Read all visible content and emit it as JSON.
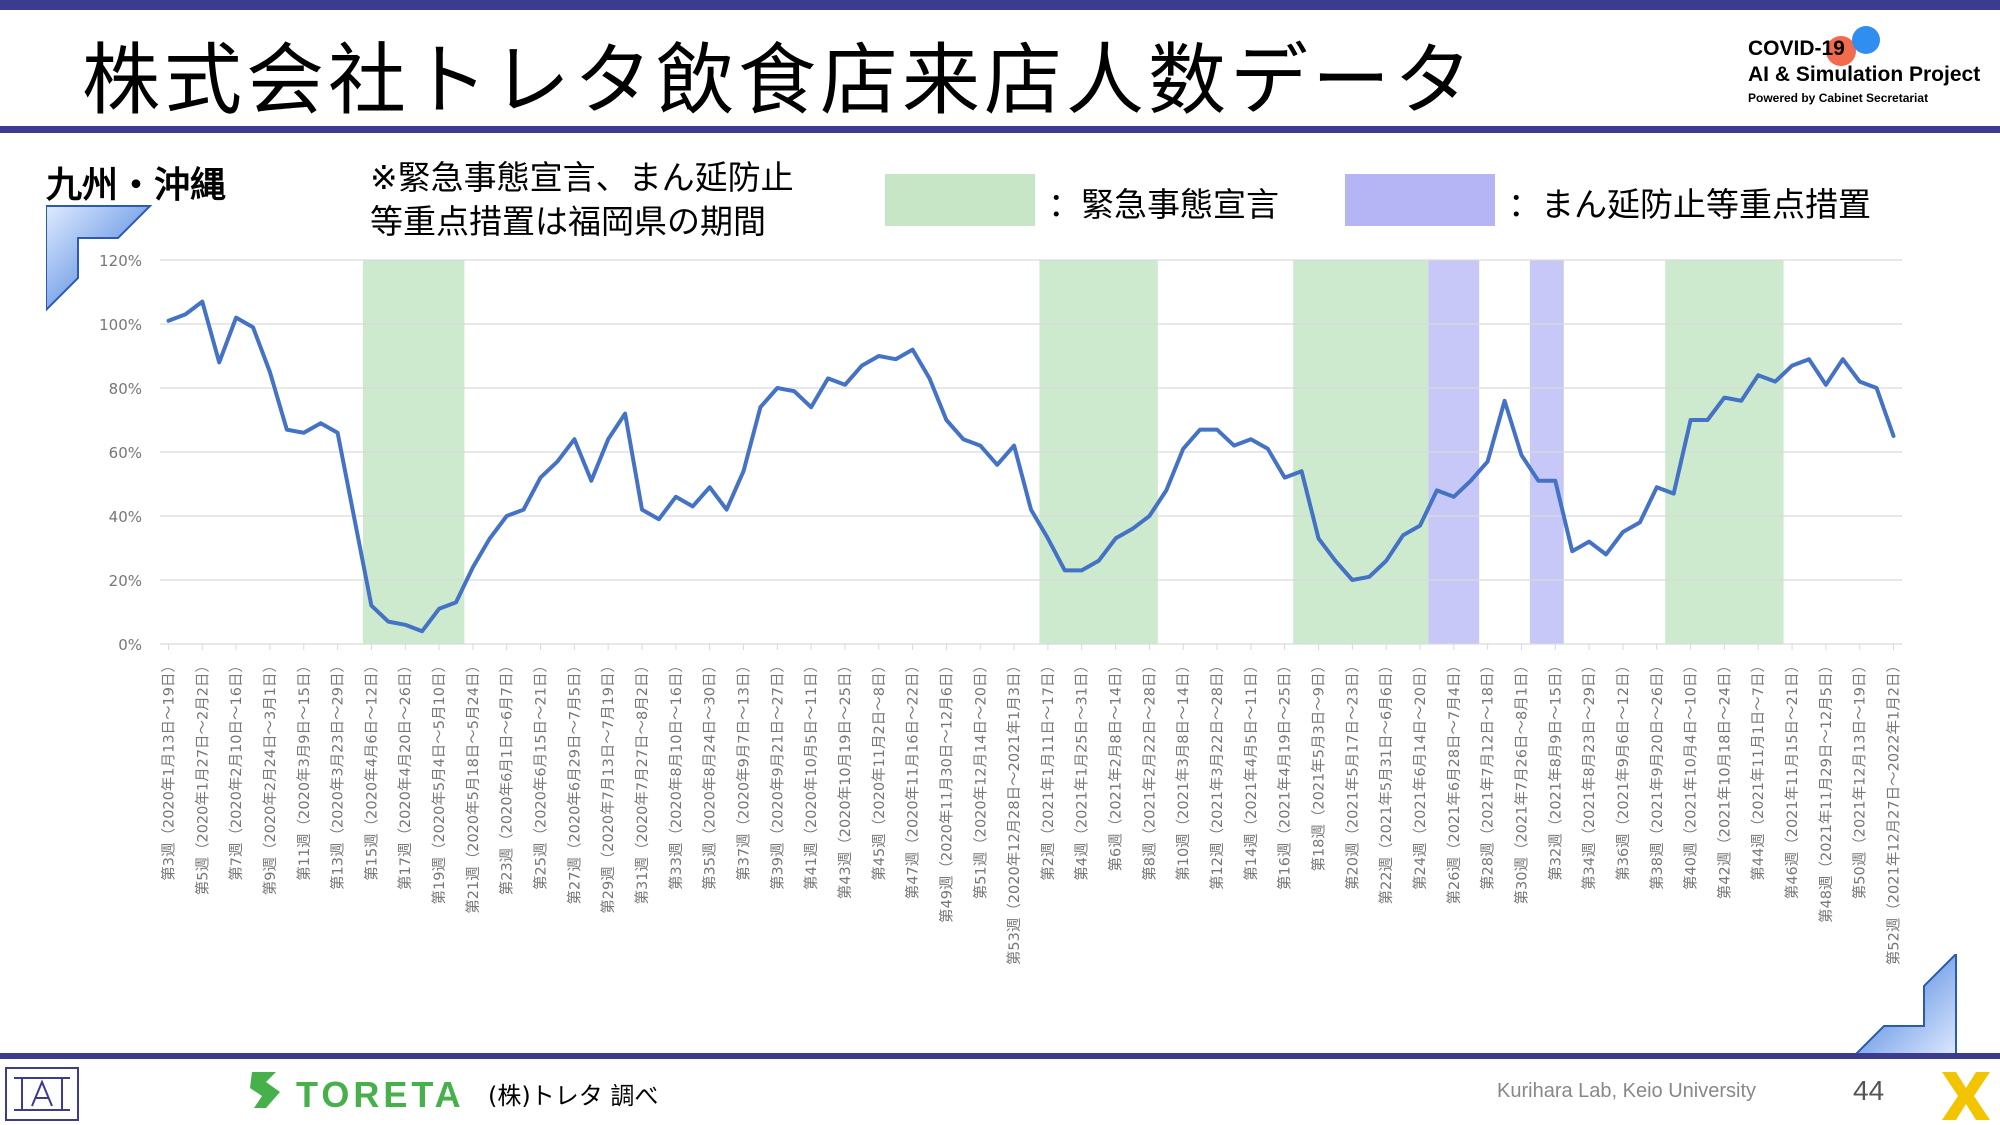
{
  "header": {
    "title": "株式会社トレタ飲食店来店人数データ",
    "logo_line1": "COVID-19",
    "logo_line2": "AI & Simulation Project",
    "logo_line3": "Powered by Cabinet Secretariat"
  },
  "region": "九州・沖縄",
  "note_line1": "※緊急事態宣言、まん延防止",
  "note_line2": "等重点措置は福岡県の期間",
  "legend": [
    {
      "label": "：緊急事態宣言",
      "color": "#c6e6c5"
    },
    {
      "label": "：まん延防止等重点措置",
      "color": "#b5b5f5"
    }
  ],
  "footer": {
    "brand": "TORETA",
    "source": "(株)トレタ 調べ",
    "lab": "Kurihara Lab, Keio University",
    "page": "44"
  },
  "colors": {
    "line": "#4472c4",
    "header_bar": "#3b3b8f",
    "brand_green": "#46b04a"
  },
  "chart_data": {
    "type": "line",
    "ylim": [
      0,
      1.2
    ],
    "yticks": [
      "0%",
      "20%",
      "40%",
      "60%",
      "80%",
      "100%",
      "120%"
    ],
    "grid": true,
    "x_labels": [
      "第3週（2020年1月13日～19日）",
      "第5週（2020年1月27日～2月2日）",
      "第7週（2020年2月10日～16日）",
      "第9週（2020年2月24日～3月1日）",
      "第11週（2020年3月9日～15日）",
      "第13週（2020年3月23日～29日）",
      "第15週（2020年4月6日～12日）",
      "第17週（2020年4月20日～26日）",
      "第19週（2020年5月4日～5月10日）",
      "第21週（2020年5月18日～5月24日）",
      "第23週（2020年6月1日～6月7日）",
      "第25週（2020年6月15日～21日）",
      "第27週（2020年6月29日～7月5日）",
      "第29週（2020年7月13日～7月19日）",
      "第31週（2020年7月27日～8月2日）",
      "第33週（2020年8月10日～16日）",
      "第35週（2020年8月24日～30日）",
      "第37週（2020年9月7日～13日）",
      "第39週（2020年9月21日～27日）",
      "第41週（2020年10月5日～11日）",
      "第43週（2020年10月19日～25日）",
      "第45週（2020年11月2日～8日）",
      "第47週（2020年11月16日～22日）",
      "第49週（2020年11月30日～12月6日）",
      "第51週（2020年12月14日～20日）",
      "第53週（2020年12月28日～2021年1月3日）",
      "第2週（2021年1月11日～17日）",
      "第4週（2021年1月25日～31日）",
      "第6週（2021年2月8日～14日）",
      "第8週（2021年2月22日～28日）",
      "第10週（2021年3月8日～14日）",
      "第12週（2021年3月22日～28日）",
      "第14週（2021年4月5日～11日）",
      "第16週（2021年4月19日～25日）",
      "第18週（2021年5月3日～9日）",
      "第20週（2021年5月17日～23日）",
      "第22週（2021年5月31日～6月6日）",
      "第24週（2021年6月14日～20日）",
      "第26週（2021年6月28日～7月4日）",
      "第28週（2021年7月12日～18日）",
      "第30週（2021年7月26日～8月1日）",
      "第32週（2021年8月9日～15日）",
      "第34週（2021年8月23日～29日）",
      "第36週（2021年9月6日～12日）",
      "第38週（2021年9月20日～26日）",
      "第40週（2021年10月4日～10日）",
      "第42週（2021年10月18日～24日）",
      "第44週（2021年11月1日～7日）",
      "第46週（2021年11月15日～21日）",
      "第48週（2021年11月29日～12月5日）",
      "第50週（2021年12月13日～19日）",
      "第52週（2021年12月27日～2022年1月2日）"
    ],
    "series": [
      {
        "values": [
          1.01,
          1.03,
          1.07,
          0.88,
          1.02,
          0.99,
          0.85,
          0.67,
          0.66,
          0.69,
          0.66,
          0.39,
          0.12,
          0.07,
          0.06,
          0.04,
          0.11,
          0.13,
          0.24,
          0.33,
          0.4,
          0.42,
          0.52,
          0.57,
          0.64,
          0.51,
          0.64,
          0.72,
          0.42,
          0.39,
          0.46,
          0.43,
          0.49,
          0.42,
          0.54,
          0.74,
          0.8,
          0.79,
          0.74,
          0.83,
          0.81,
          0.87,
          0.9,
          0.89,
          0.92,
          0.83,
          0.7,
          0.64,
          0.62,
          0.56,
          0.62,
          0.42,
          0.33,
          0.23,
          0.23,
          0.26,
          0.33,
          0.36,
          0.4,
          0.48,
          0.61,
          0.67,
          0.67,
          0.62,
          0.64,
          0.61,
          0.52,
          0.54,
          0.33,
          0.26,
          0.2,
          0.21,
          0.26,
          0.34,
          0.37,
          0.48,
          0.46,
          0.51,
          0.57,
          0.76,
          0.59,
          0.51,
          0.51,
          0.29,
          0.32,
          0.28,
          0.35,
          0.38,
          0.49,
          0.47,
          0.7,
          0.7,
          0.77,
          0.76,
          0.84,
          0.82,
          0.87,
          0.89,
          0.81,
          0.89,
          0.82,
          0.8,
          0.65
        ]
      }
    ],
    "emergency_periods": [
      [
        12,
        17
      ],
      [
        52,
        58
      ],
      [
        67,
        74
      ],
      [
        89,
        95
      ]
    ],
    "semi_emergency_periods": [
      [
        75,
        77
      ],
      [
        81,
        82
      ]
    ]
  }
}
